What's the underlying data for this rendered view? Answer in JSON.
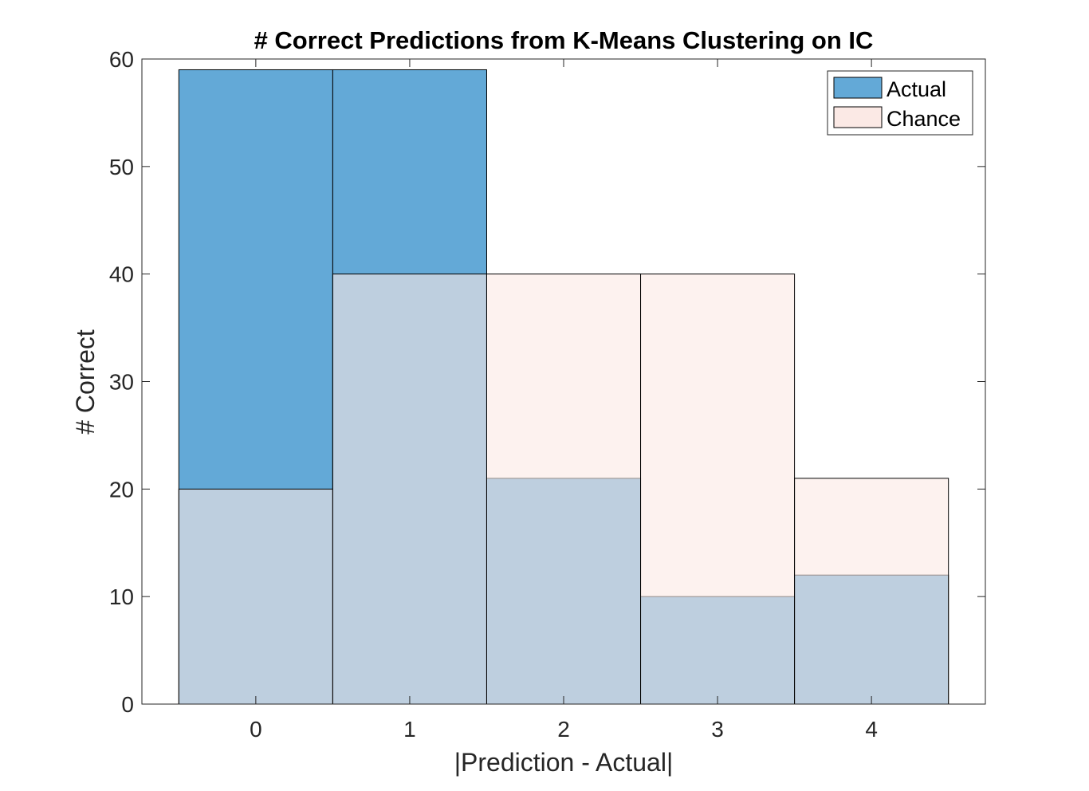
{
  "chart_data": {
    "type": "bar",
    "title": "# Correct Predictions from K-Means Clustering on IC",
    "xlabel": "|Prediction - Actual|",
    "ylabel": "# Correct",
    "categories": [
      "0",
      "1",
      "2",
      "3",
      "4"
    ],
    "x": [
      0,
      1,
      2,
      3,
      4
    ],
    "xlim": [
      -0.74,
      4.74
    ],
    "ylim": [
      0,
      60
    ],
    "yticks": [
      "0",
      "10",
      "20",
      "30",
      "40",
      "50",
      "60"
    ],
    "grid": false,
    "legend_position": "top-right",
    "overlay": true,
    "series": [
      {
        "name": "Actual",
        "values": [
          59,
          59,
          21,
          10,
          12
        ],
        "color": "#63a9d7",
        "opacity": 1.0
      },
      {
        "name": "Chance",
        "values": [
          20,
          40,
          40,
          40,
          21
        ],
        "color": "#fbe9e5",
        "opacity": 0.6
      }
    ]
  }
}
